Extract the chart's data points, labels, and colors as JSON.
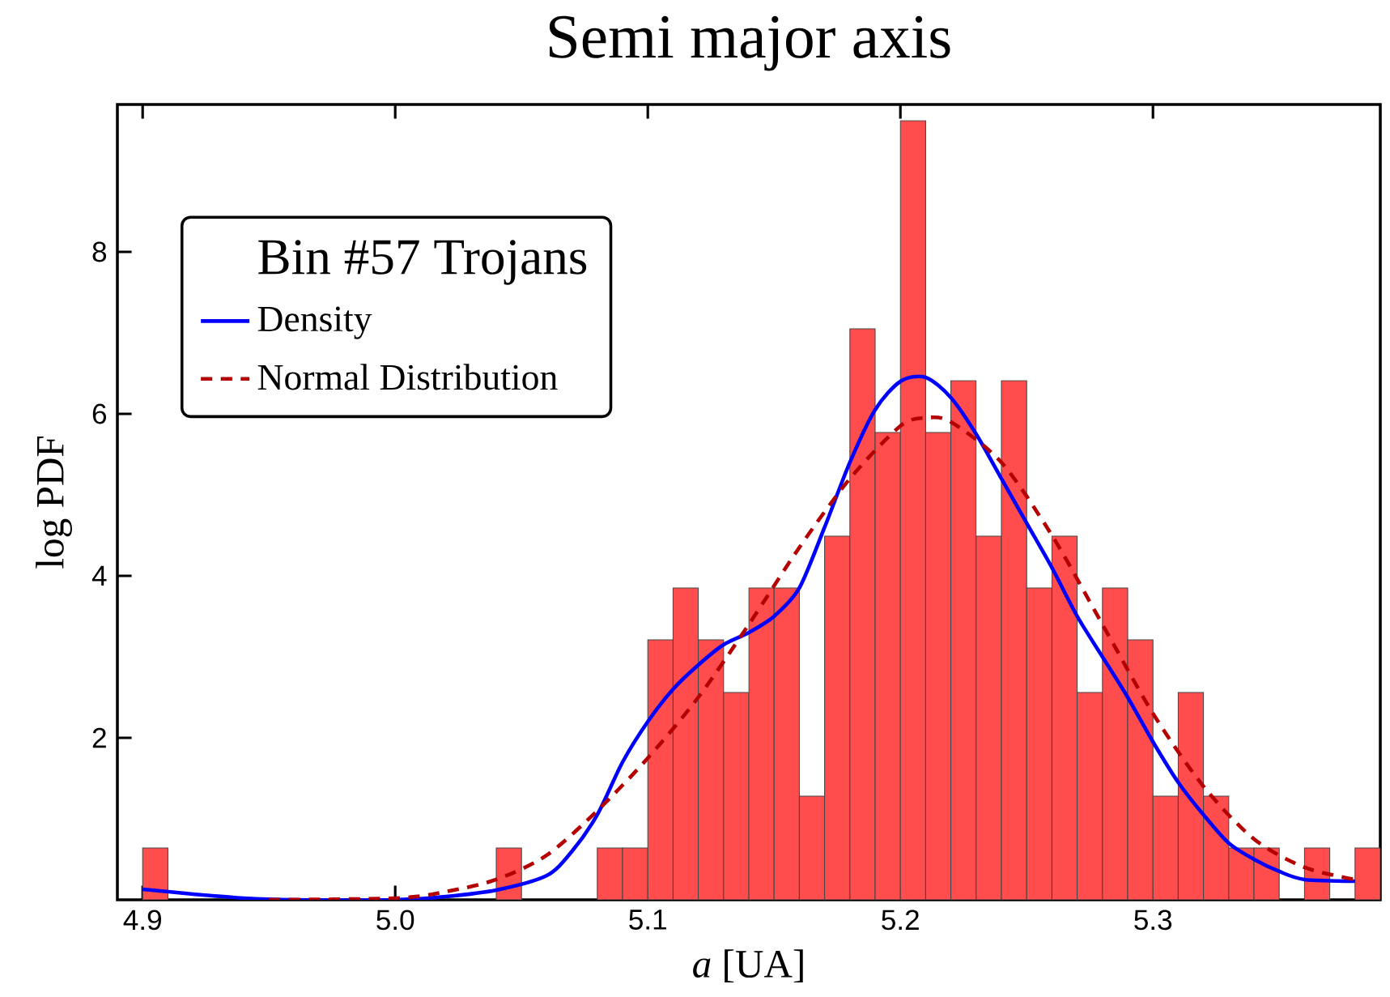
{
  "chart_data": {
    "type": "histogram",
    "title": "Semi major axis",
    "xlabel": "*a* [UA]",
    "ylabel": "log PDF",
    "legend_title": "Bin #57 Trojans",
    "bins": [
      4.9,
      4.91,
      4.92,
      4.93,
      4.94,
      4.95,
      4.96,
      4.97,
      4.98,
      4.99,
      5.0,
      5.01,
      5.02,
      5.03,
      5.04,
      5.05,
      5.06,
      5.07,
      5.08,
      5.09,
      5.1,
      5.11,
      5.12,
      5.13,
      5.14,
      5.15,
      5.16,
      5.17,
      5.18,
      5.19,
      5.2,
      5.21,
      5.22,
      5.23,
      5.24,
      5.25,
      5.26,
      5.27,
      5.28,
      5.29,
      5.3,
      5.31,
      5.32,
      5.33,
      5.34,
      5.35,
      5.36,
      5.37,
      5.38,
      5.39
    ],
    "values": [
      0.64,
      0,
      0,
      0,
      0,
      0,
      0,
      0,
      0,
      0,
      0,
      0,
      0,
      0,
      0.64,
      0,
      0,
      0,
      0.64,
      0.64,
      3.21,
      3.85,
      3.21,
      2.56,
      3.85,
      3.85,
      1.28,
      4.49,
      7.05,
      5.77,
      9.62,
      5.77,
      6.41,
      4.49,
      6.41,
      3.85,
      4.49,
      2.56,
      3.85,
      3.21,
      1.28,
      2.56,
      1.28,
      0.64,
      0.64,
      0,
      0.64,
      0,
      0.64
    ],
    "color": "#ff4c4c",
    "series": [
      {
        "name": "Density",
        "type": "line",
        "color": "#0000ff",
        "line_style": "solid",
        "x": [
          4.9,
          4.92,
          4.94,
          4.96,
          5.0,
          5.02,
          5.04,
          5.06,
          5.07,
          5.08,
          5.09,
          5.1,
          5.11,
          5.12,
          5.13,
          5.14,
          5.15,
          5.16,
          5.17,
          5.18,
          5.19,
          5.2,
          5.21,
          5.22,
          5.23,
          5.24,
          5.25,
          5.26,
          5.27,
          5.28,
          5.29,
          5.3,
          5.31,
          5.32,
          5.33,
          5.34,
          5.35,
          5.36,
          5.38
        ],
        "values": [
          0.13,
          0.07,
          0.02,
          0,
          0,
          0.04,
          0.12,
          0.3,
          0.6,
          1.05,
          1.7,
          2.2,
          2.6,
          2.9,
          3.15,
          3.3,
          3.5,
          3.85,
          4.6,
          5.4,
          6.05,
          6.4,
          6.45,
          6.2,
          5.75,
          5.2,
          4.65,
          4.1,
          3.5,
          3.0,
          2.5,
          1.95,
          1.45,
          1.05,
          0.7,
          0.5,
          0.35,
          0.25,
          0.23
        ]
      },
      {
        "name": "Normal Distribution",
        "type": "line",
        "color": "#b40000",
        "line_style": "dashed",
        "x": [
          4.95,
          5.0,
          5.02,
          5.04,
          5.06,
          5.08,
          5.1,
          5.12,
          5.14,
          5.16,
          5.18,
          5.2,
          5.21,
          5.22,
          5.24,
          5.26,
          5.28,
          5.3,
          5.32,
          5.34,
          5.36,
          5.38
        ],
        "values": [
          0,
          0.02,
          0.1,
          0.25,
          0.55,
          1.1,
          1.75,
          2.5,
          3.4,
          4.35,
          5.2,
          5.85,
          5.95,
          5.9,
          5.4,
          4.5,
          3.4,
          2.3,
          1.4,
          0.75,
          0.4,
          0.25
        ]
      }
    ],
    "xlim": [
      4.89,
      5.39
    ],
    "ylim": [
      0,
      9.82
    ],
    "xticks": [
      4.9,
      {
        "value": 5.0,
        "label": "5.0"
      },
      5.1,
      5.2,
      5.3
    ],
    "yticks": [
      2,
      4,
      6,
      8
    ],
    "legend": "top left",
    "grid": false
  }
}
